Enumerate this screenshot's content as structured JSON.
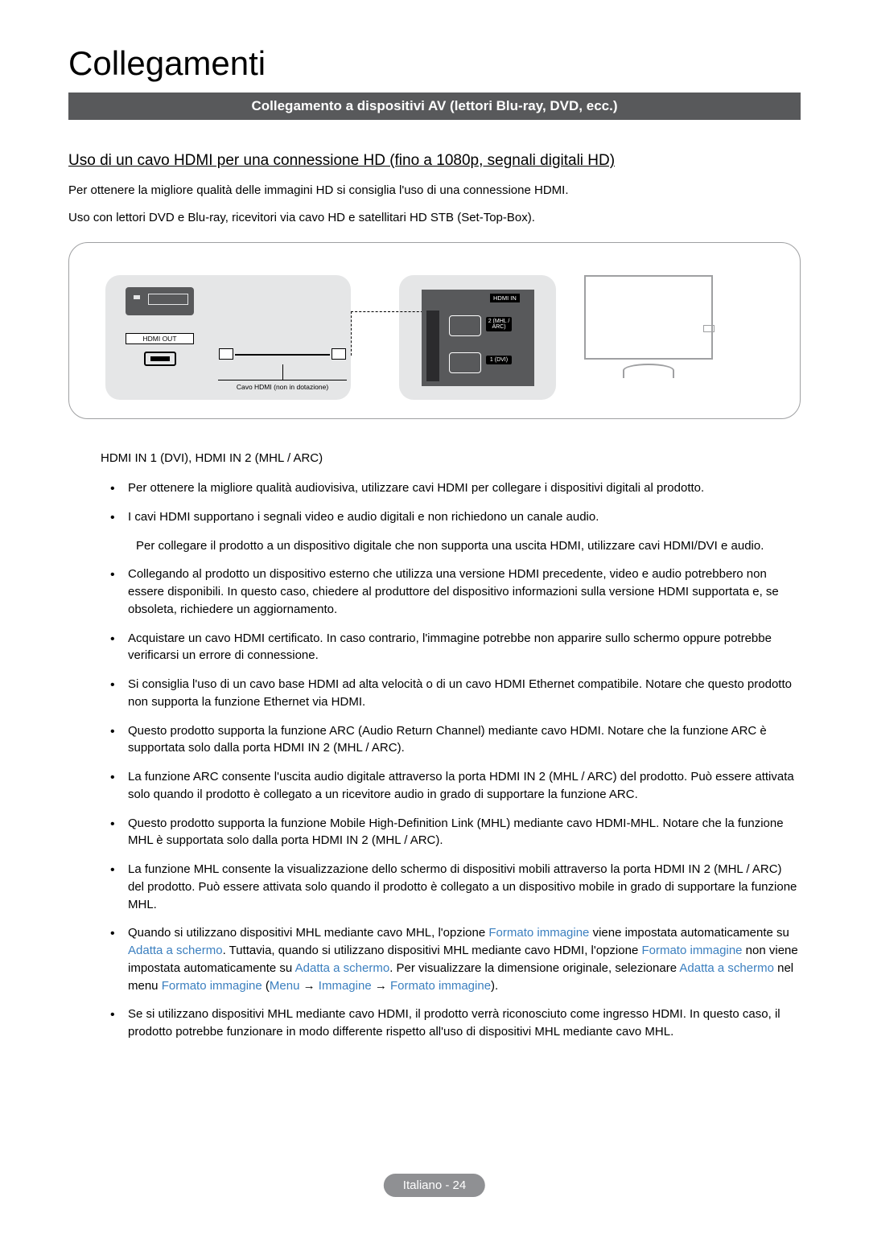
{
  "page": {
    "title": "Collegamenti",
    "section_bar": "Collegamento a dispositivi AV (lettori Blu-ray, DVD, ecc.)",
    "subsection": "Uso di un cavo HDMI per una connessione HD (fino a 1080p, segnali digitali HD)",
    "intro1": "Per ottenere la migliore qualità delle immagini HD si consiglia l'uso di una connessione HDMI.",
    "intro2": "Uso con lettori DVD e Blu-ray, ricevitori via cavo HD e satellitari HD STB (Set-Top-Box).",
    "footer": "Italiano - 24"
  },
  "diagram": {
    "hdmi_out_label": "HDMI OUT",
    "cable_caption": "Cavo HDMI (non in dotazione)",
    "hdmi_in_label": "HDMI IN",
    "port_top_label": "2\n(MHL\n/ ARC)",
    "port_bot_label": "1\n(DVI)",
    "colors": {
      "frame_border": "#9fa0a2",
      "box_bg": "#e5e6e7",
      "dark_bg": "#58595b",
      "text": "#000000",
      "white": "#ffffff"
    }
  },
  "content": {
    "heading": "HDMI IN 1 (DVI), HDMI IN 2 (MHL / ARC)",
    "b1": "Per ottenere la migliore qualità audiovisiva, utilizzare cavi HDMI per collegare i dispositivi digitali al prodotto.",
    "b2": "I cavi HDMI supportano i segnali video e audio digitali e non richiedono un canale audio.",
    "b2_note": "Per collegare il prodotto a un dispositivo digitale che non supporta una uscita HDMI, utilizzare cavi HDMI/DVI e audio.",
    "b3": "Collegando al prodotto un dispositivo esterno che utilizza una versione HDMI precedente, video e audio potrebbero non essere disponibili. In questo caso, chiedere al produttore del dispositivo informazioni sulla versione HDMI supportata e, se obsoleta, richiedere un aggiornamento.",
    "b4": "Acquistare un cavo HDMI certificato. In caso contrario, l'immagine potrebbe non apparire sullo schermo oppure potrebbe verificarsi un errore di connessione.",
    "b5": "Si consiglia l'uso di un cavo base HDMI ad alta velocità o di un cavo HDMI Ethernet compatibile. Notare che questo prodotto non supporta la funzione Ethernet via HDMI.",
    "b6": "Questo prodotto supporta la funzione ARC (Audio Return Channel) mediante cavo HDMI. Notare che la funzione ARC è supportata solo dalla porta HDMI IN 2 (MHL / ARC).",
    "b7": "La funzione ARC consente l'uscita audio digitale attraverso la porta HDMI IN 2 (MHL / ARC) del prodotto. Può essere attivata solo quando il prodotto è collegato a un ricevitore audio in grado di supportare la funzione ARC.",
    "b8": "Questo prodotto supporta la funzione Mobile High-Definition Link (MHL) mediante cavo HDMI-MHL. Notare che la funzione MHL è supportata solo dalla porta HDMI IN 2 (MHL / ARC).",
    "b9": "La funzione MHL consente la visualizzazione dello schermo di dispositivi mobili attraverso la porta HDMI IN 2 (MHL / ARC) del prodotto. Può essere attivata solo quando il prodotto è collegato a un dispositivo mobile in grado di supportare la funzione MHL.",
    "b10_p1": "Quando si utilizzano dispositivi MHL mediante cavo MHL, l'opzione ",
    "b10_h1": "Formato immagine",
    "b10_p2": " viene impostata automaticamente su ",
    "b10_h2": "Adatta a schermo",
    "b10_p3": ". Tuttavia, quando si utilizzano dispositivi MHL mediante cavo HDMI, l'opzione ",
    "b10_h3": "Formato immagine",
    "b10_p4": " non viene impostata automaticamente su ",
    "b10_h4": "Adatta a schermo",
    "b10_p5": ". Per visualizzare la dimensione originale, selezionare ",
    "b10_h5": "Adatta a schermo",
    "b10_p6": " nel menu ",
    "b10_h6": "Formato immagine",
    "b10_p7": " (",
    "b10_h7": "Menu",
    "b10_p8": " → ",
    "b10_h8": "Immagine",
    "b10_p9": " → ",
    "b10_h9": "Formato immagine",
    "b10_p10": ").",
    "b11": "Se si utilizzano dispositivi MHL mediante cavo HDMI, il prodotto verrà riconosciuto come ingresso HDMI. In questo caso, il prodotto potrebbe funzionare in modo differente rispetto all'uso di dispositivi MHL mediante cavo MHL."
  },
  "styling": {
    "page_bg": "#ffffff",
    "text_color": "#000000",
    "section_bar_bg": "#58595b",
    "section_bar_fg": "#ffffff",
    "highlight_color": "#3b7fbf",
    "footer_bg": "#8f9093",
    "footer_fg": "#ffffff",
    "title_fontsize": 42,
    "body_fontsize": 15
  }
}
